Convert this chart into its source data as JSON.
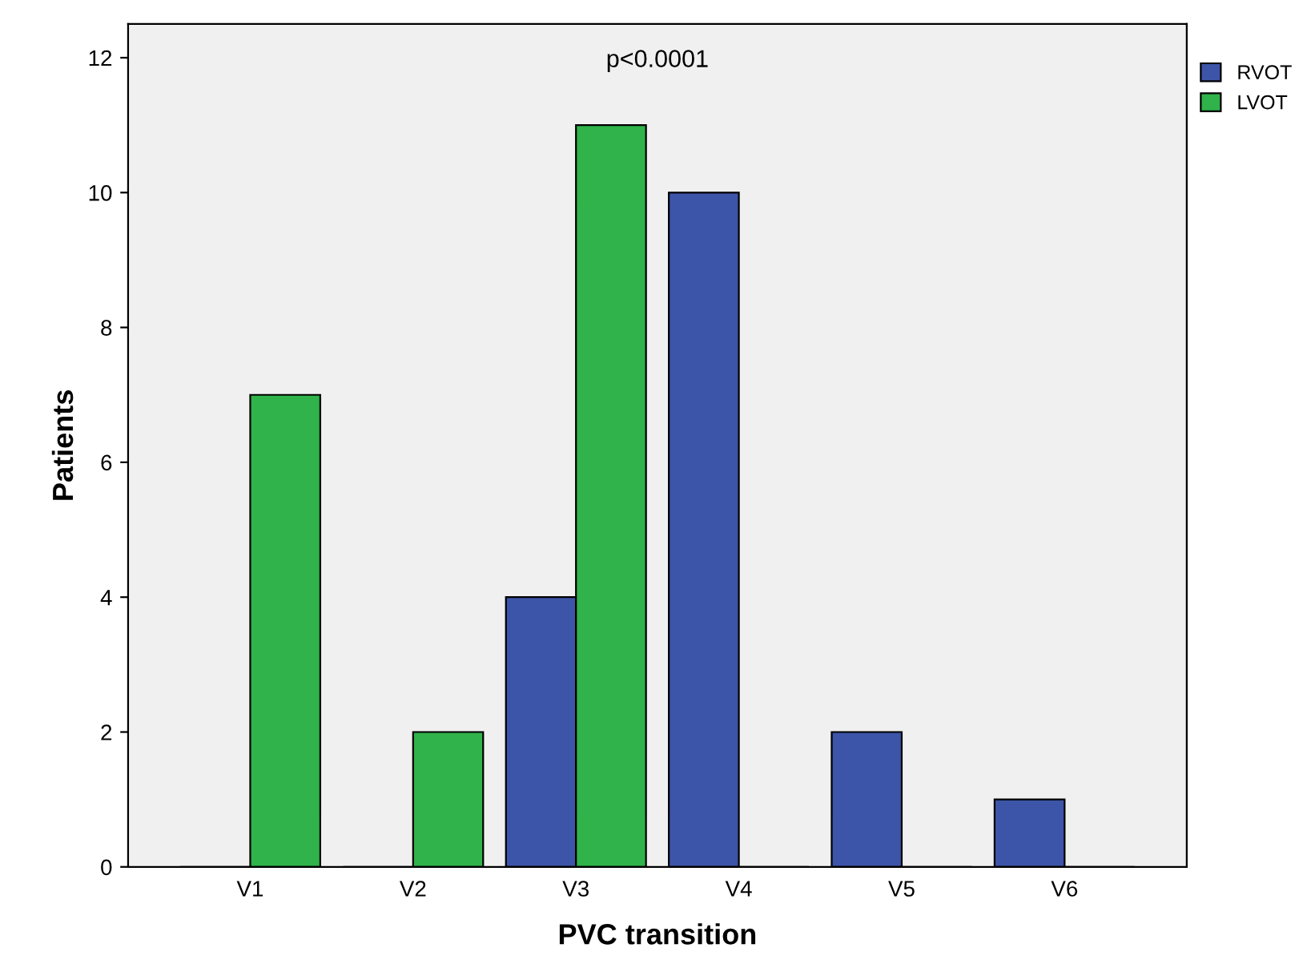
{
  "chart_data": {
    "type": "bar",
    "xlabel": "PVC transition",
    "ylabel": "Patients",
    "categories": [
      "V1",
      "V2",
      "V3",
      "V4",
      "V5",
      "V6"
    ],
    "series": [
      {
        "name": "RVOT",
        "color": "#3c55a8",
        "values": [
          0,
          0,
          4,
          10,
          2,
          1
        ]
      },
      {
        "name": "LVOT",
        "color": "#2fb34a",
        "values": [
          7,
          2,
          11,
          0,
          0,
          0
        ]
      }
    ],
    "ylim": [
      0,
      12.5
    ],
    "yticks": [
      0,
      2,
      4,
      6,
      8,
      10,
      12
    ],
    "grid": false,
    "legend": "top right",
    "annotations": [
      "p<0.0001"
    ]
  }
}
